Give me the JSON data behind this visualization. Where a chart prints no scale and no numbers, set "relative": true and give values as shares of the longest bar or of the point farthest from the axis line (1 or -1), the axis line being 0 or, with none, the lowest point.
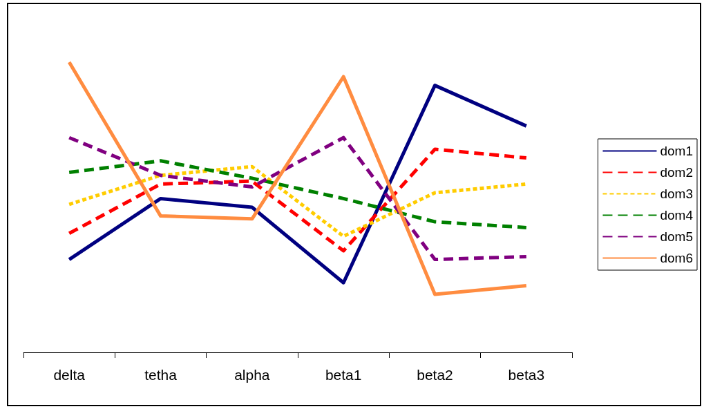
{
  "chart_data": {
    "type": "line",
    "relative": true,
    "categories": [
      "delta",
      "tetha",
      "alpha",
      "beta1",
      "beta2",
      "beta3"
    ],
    "series": [
      {
        "name": "dom1",
        "color": "#000080",
        "line_style": "solid",
        "values": [
          0.32,
          0.53,
          0.5,
          0.24,
          0.92,
          0.78
        ]
      },
      {
        "name": "dom2",
        "color": "#ff0000",
        "line_style": "dashed",
        "values": [
          0.41,
          0.58,
          0.59,
          0.35,
          0.7,
          0.67
        ]
      },
      {
        "name": "dom3",
        "color": "#ffcc00",
        "line_style": "dotted",
        "values": [
          0.51,
          0.61,
          0.64,
          0.4,
          0.55,
          0.58
        ]
      },
      {
        "name": "dom4",
        "color": "#008000",
        "line_style": "dashed",
        "values": [
          0.62,
          0.66,
          0.6,
          0.53,
          0.45,
          0.43
        ]
      },
      {
        "name": "dom5",
        "color": "#800080",
        "line_style": "dashed",
        "values": [
          0.74,
          0.61,
          0.57,
          0.74,
          0.32,
          0.33
        ]
      },
      {
        "name": "dom6",
        "color": "#ff8c40",
        "line_style": "solid",
        "values": [
          1,
          0.47,
          0.46,
          0.95,
          0.2,
          0.23
        ]
      }
    ],
    "legend": "right",
    "grid": false,
    "marker": "none"
  }
}
